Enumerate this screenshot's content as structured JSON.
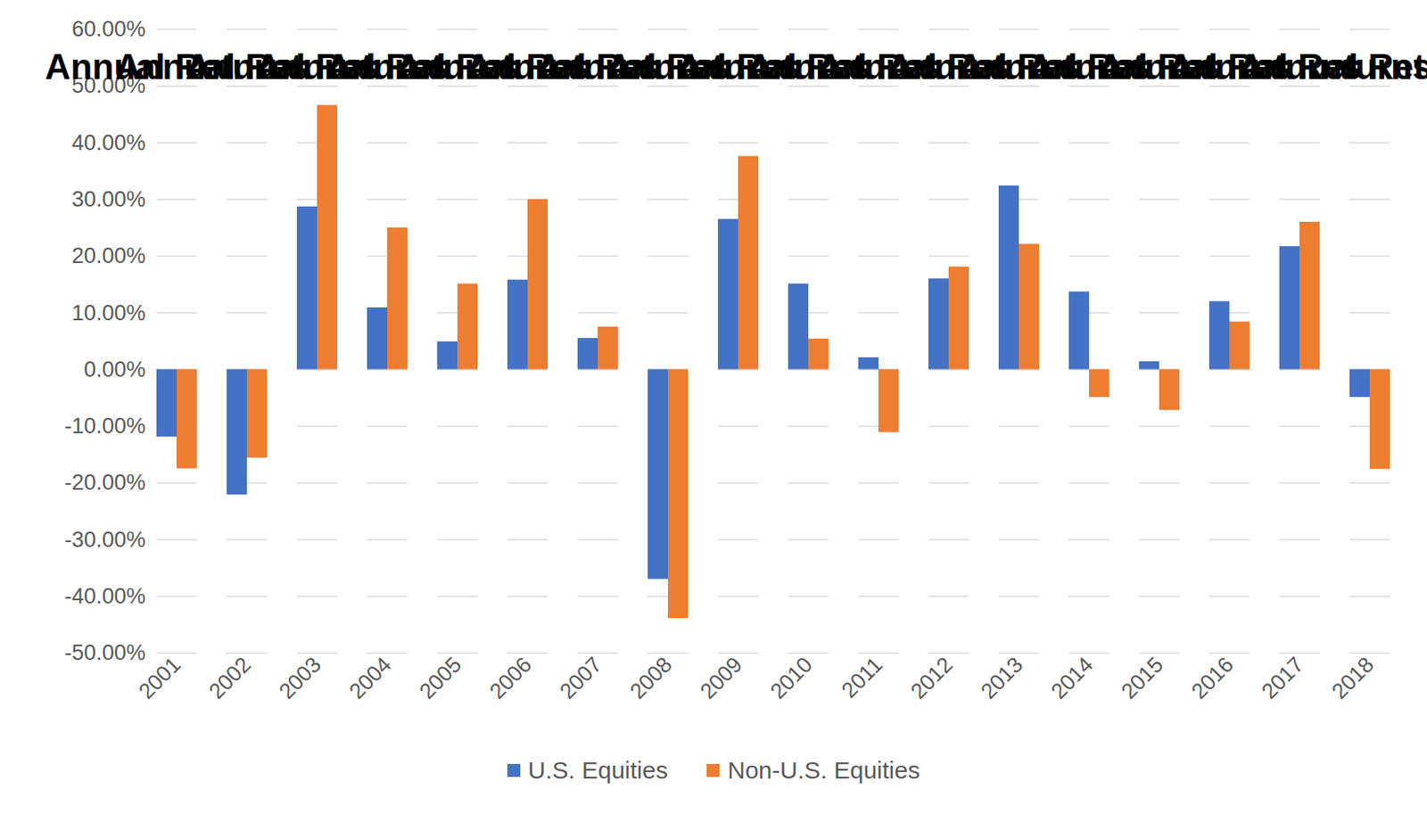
{
  "chart_data": {
    "type": "bar",
    "title": "Annual Returns",
    "categories": [
      "2001",
      "2002",
      "2003",
      "2004",
      "2005",
      "2006",
      "2007",
      "2008",
      "2009",
      "2010",
      "2011",
      "2012",
      "2013",
      "2014",
      "2015",
      "2016",
      "2017",
      "2018"
    ],
    "series": [
      {
        "name": "U.S. Equities",
        "color": "#4472c4",
        "values": [
          -11.9,
          -22.1,
          28.7,
          10.9,
          4.9,
          15.8,
          5.5,
          -37.0,
          26.5,
          15.1,
          2.1,
          16.0,
          32.4,
          13.7,
          1.4,
          12.0,
          21.7,
          -4.9
        ]
      },
      {
        "name": "Non-U.S. Equities",
        "color": "#ed7d31",
        "values": [
          -17.5,
          -15.6,
          46.6,
          25.0,
          15.1,
          30.0,
          7.5,
          -43.9,
          37.6,
          5.4,
          -11.1,
          18.1,
          22.1,
          -4.9,
          -7.2,
          8.4,
          26.0,
          -17.6
        ]
      }
    ],
    "ylim": [
      -50,
      60
    ],
    "yticks": [
      {
        "value": -50,
        "label": "-50.00%"
      },
      {
        "value": -40,
        "label": "-40.00%"
      },
      {
        "value": -30,
        "label": "-30.00%"
      },
      {
        "value": -20,
        "label": "-20.00%"
      },
      {
        "value": -10,
        "label": "-10.00%"
      },
      {
        "value": 0,
        "label": "0.00%"
      },
      {
        "value": 10,
        "label": "10.00%"
      },
      {
        "value": 20,
        "label": "20.00%"
      },
      {
        "value": 30,
        "label": "30.00%"
      },
      {
        "value": 40,
        "label": "40.00%"
      },
      {
        "value": 50,
        "label": "50.00%"
      },
      {
        "value": 60,
        "label": "60.00%"
      }
    ],
    "grid": true,
    "legend": "bottom"
  }
}
